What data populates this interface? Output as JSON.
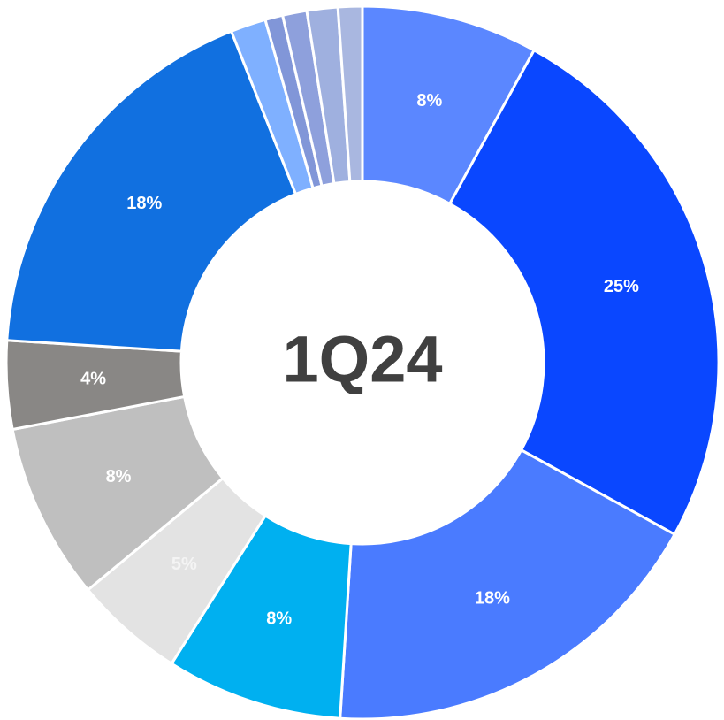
{
  "chart_data": {
    "type": "donut",
    "center_label": "1Q24",
    "values": [
      8,
      25,
      18,
      8,
      5,
      8,
      4,
      18,
      1.6,
      0.8,
      1.1,
      1.4,
      1.1
    ],
    "value_labels": [
      "8%",
      "25%",
      "18%",
      "8%",
      "5%",
      "8%",
      "4%",
      "18%",
      null,
      null,
      null,
      null,
      null
    ],
    "colors": [
      "#5b87ff",
      "#0a47ff",
      "#4a7bff",
      "#00b0f0",
      "#e3e3e3",
      "#bfbfbf",
      "#898785",
      "#1170e0",
      "#7fb0ff",
      "#8196d8",
      "#8ea0dc",
      "#9fb0df",
      "#a9b7e0"
    ]
  }
}
